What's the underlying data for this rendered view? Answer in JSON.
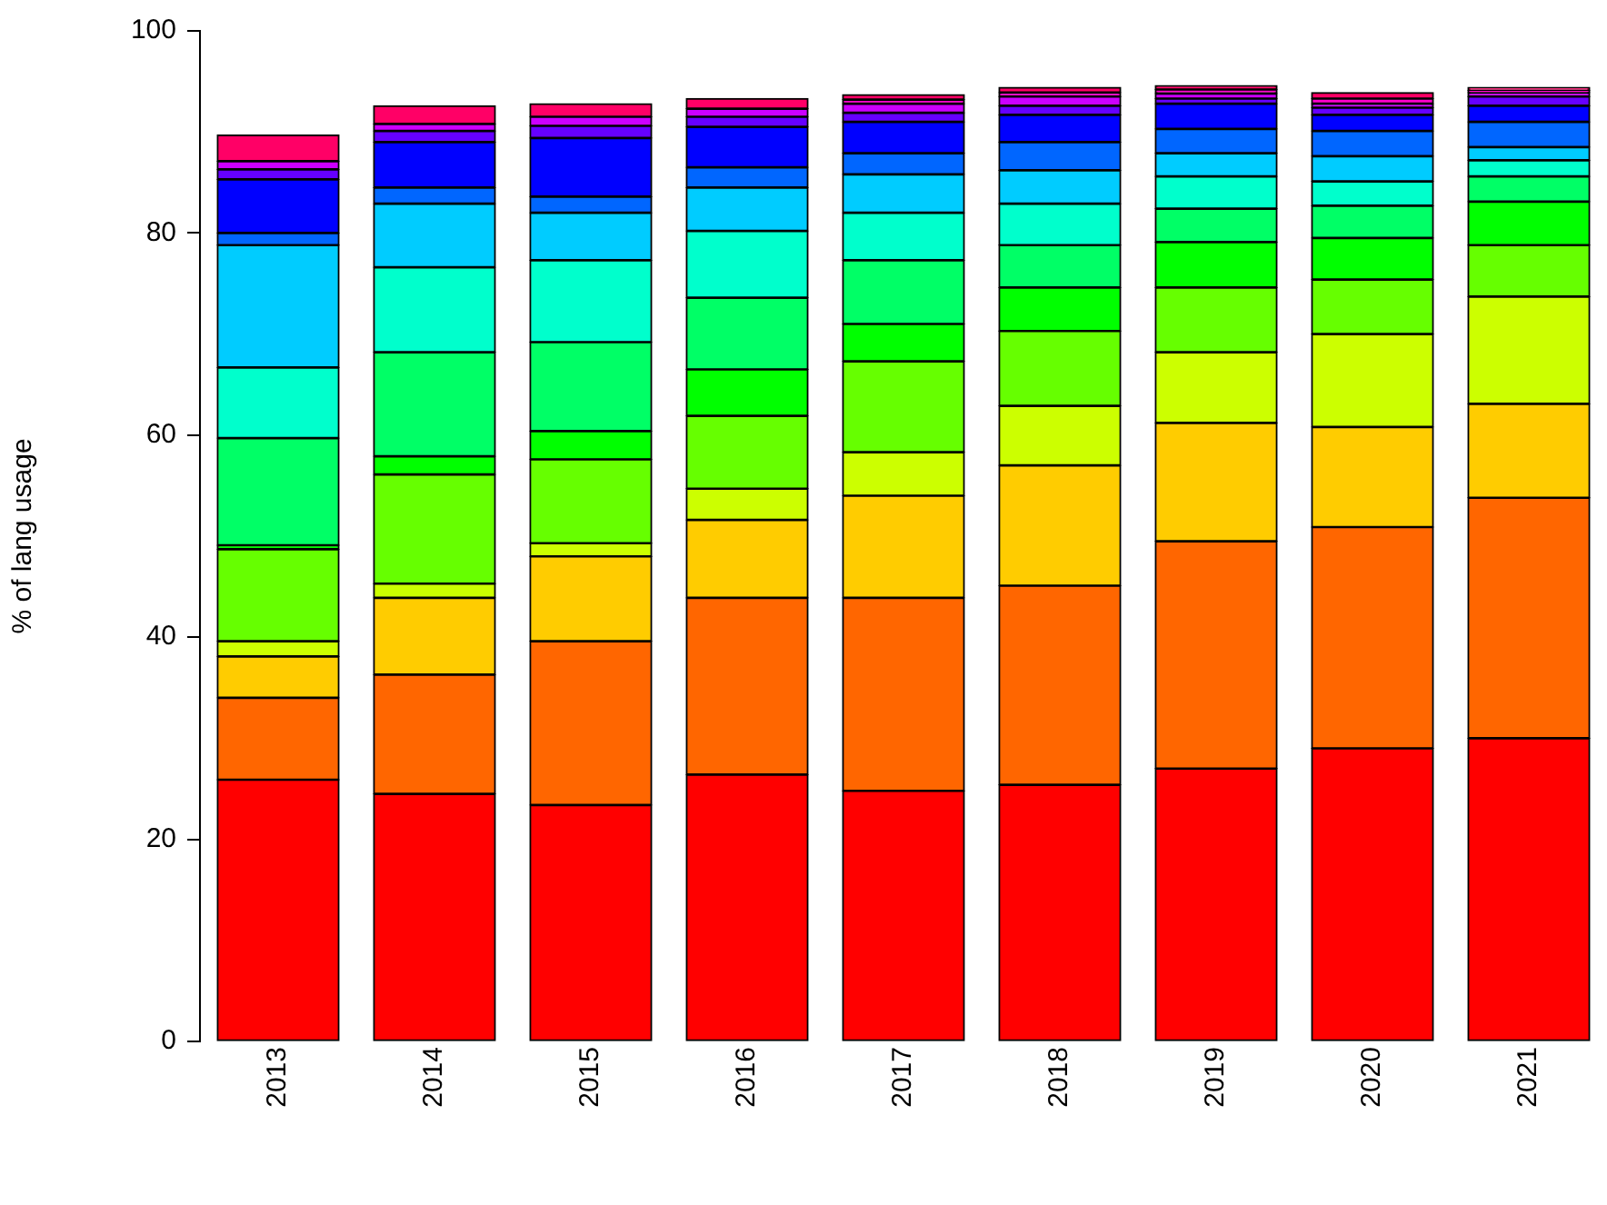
{
  "chart_data": {
    "type": "bar",
    "stacked": true,
    "ylabel": "% of lang usage",
    "categories": [
      "2013",
      "2014",
      "2015",
      "2016",
      "2017",
      "2018",
      "2019",
      "2020",
      "2021"
    ],
    "ylim": [
      0,
      100
    ],
    "yticks": [
      0,
      20,
      40,
      60,
      80,
      100
    ],
    "grid": false,
    "legend": false,
    "series": [
      {
        "color": "#ff0000",
        "values": [
          25.9,
          24.5,
          23.4,
          26.4,
          24.8,
          25.4,
          27.0,
          29.0,
          30.0
        ]
      },
      {
        "color": "#ff6600",
        "values": [
          8.1,
          11.8,
          16.2,
          17.5,
          19.1,
          19.7,
          22.5,
          21.9,
          23.8
        ]
      },
      {
        "color": "#ffcc00",
        "values": [
          4.1,
          7.6,
          8.4,
          7.7,
          10.1,
          11.9,
          11.7,
          9.9,
          9.3
        ]
      },
      {
        "color": "#ccff00",
        "values": [
          1.5,
          1.4,
          1.3,
          3.1,
          4.3,
          5.9,
          7.0,
          9.2,
          10.6
        ]
      },
      {
        "color": "#66ff00",
        "values": [
          9.1,
          10.8,
          8.3,
          7.2,
          9.0,
          7.4,
          6.4,
          5.4,
          5.1
        ]
      },
      {
        "color": "#00ff00",
        "values": [
          0.4,
          1.8,
          2.8,
          4.6,
          3.7,
          4.3,
          4.5,
          4.1,
          4.3
        ]
      },
      {
        "color": "#00ff66",
        "values": [
          10.6,
          10.3,
          8.8,
          7.1,
          6.3,
          4.2,
          3.3,
          3.2,
          2.5
        ]
      },
      {
        "color": "#00ffcc",
        "values": [
          7.0,
          8.4,
          8.1,
          6.6,
          4.7,
          4.1,
          3.2,
          2.4,
          1.6
        ]
      },
      {
        "color": "#00ccff",
        "values": [
          12.1,
          6.3,
          4.7,
          4.3,
          3.8,
          3.3,
          2.3,
          2.5,
          1.3
        ]
      },
      {
        "color": "#0066ff",
        "values": [
          1.2,
          1.6,
          1.6,
          2.0,
          2.1,
          2.8,
          2.4,
          2.5,
          2.5
        ]
      },
      {
        "color": "#0000ff",
        "values": [
          5.3,
          4.5,
          5.8,
          4.0,
          3.1,
          2.7,
          2.5,
          1.6,
          1.6
        ]
      },
      {
        "color": "#6600ff",
        "values": [
          1.0,
          1.1,
          1.2,
          1.0,
          0.9,
          0.9,
          0.5,
          0.7,
          0.9
        ]
      },
      {
        "color": "#cc00ff",
        "values": [
          0.8,
          0.7,
          0.9,
          0.8,
          0.9,
          0.9,
          0.5,
          0.4,
          0.4
        ]
      },
      {
        "color": "#ff00cc",
        "values": [
          0,
          0,
          0,
          0,
          0.4,
          0.4,
          0.4,
          0.5,
          0.2
        ]
      },
      {
        "color": "#ff0066",
        "values": [
          2.6,
          1.8,
          1.3,
          1.0,
          0.5,
          0.5,
          0.4,
          0.6,
          0.3
        ]
      }
    ]
  }
}
